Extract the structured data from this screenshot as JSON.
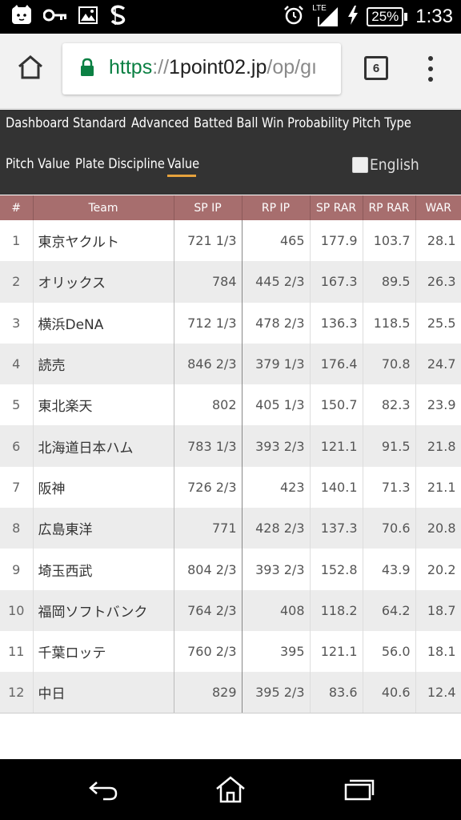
{
  "status_bar": {
    "network_label": "LTE",
    "battery": "25%",
    "time": "1:33"
  },
  "browser": {
    "url_scheme": "https",
    "url_sep": "://",
    "url_host": "1point02.jp",
    "url_path": "/op/gı",
    "tab_count": "6"
  },
  "site_nav": {
    "items": [
      "Dashboard",
      "Standard",
      "Advanced",
      "Batted Ball",
      "Win Probability",
      "Pitch Type",
      "Pitch Value",
      "Plate Discipline",
      "Value"
    ],
    "active": "Value",
    "english_label": "English",
    "accent_color": "#e6a23c"
  },
  "table": {
    "headers": [
      "#",
      "Team",
      "SP IP",
      "RP IP",
      "SP RAR",
      "RP RAR",
      "WAR"
    ],
    "header_color": "#a76e6e",
    "rows": [
      [
        "1",
        "東京ヤクルト",
        "721 1/3",
        "465",
        "177.9",
        "103.7",
        "28.1"
      ],
      [
        "2",
        "オリックス",
        "784",
        "445 2/3",
        "167.3",
        "89.5",
        "26.3"
      ],
      [
        "3",
        "横浜DeNA",
        "712 1/3",
        "478 2/3",
        "136.3",
        "118.5",
        "25.5"
      ],
      [
        "4",
        "読売",
        "846 2/3",
        "379 1/3",
        "176.4",
        "70.8",
        "24.7"
      ],
      [
        "5",
        "東北楽天",
        "802",
        "405 1/3",
        "150.7",
        "82.3",
        "23.9"
      ],
      [
        "6",
        "北海道日本ハム",
        "783 1/3",
        "393 2/3",
        "121.1",
        "91.5",
        "21.8"
      ],
      [
        "7",
        "阪神",
        "726 2/3",
        "423",
        "140.1",
        "71.3",
        "21.1"
      ],
      [
        "8",
        "広島東洋",
        "771",
        "428 2/3",
        "137.3",
        "70.6",
        "20.8"
      ],
      [
        "9",
        "埼玉西武",
        "804 2/3",
        "393 2/3",
        "152.8",
        "43.9",
        "20.2"
      ],
      [
        "10",
        "福岡ソフトバンク",
        "764 2/3",
        "408",
        "118.2",
        "64.2",
        "18.7"
      ],
      [
        "11",
        "千葉ロッテ",
        "760 2/3",
        "395",
        "121.1",
        "56.0",
        "18.1"
      ],
      [
        "12",
        "中日",
        "829",
        "395 2/3",
        "83.6",
        "40.6",
        "12.4"
      ]
    ]
  },
  "icons": {
    "status_left": [
      "cat-notification-icon",
      "key-icon",
      "image-icon",
      "s-app-icon"
    ],
    "status_right": [
      "alarm-clock-icon",
      "signal-icon",
      "charging-bolt-icon",
      "battery-icon"
    ],
    "browser": [
      "home-icon",
      "lock-icon",
      "tab-switcher-icon",
      "overflow-menu-icon"
    ],
    "android_nav": [
      "back-icon",
      "home-icon",
      "recents-icon"
    ]
  }
}
